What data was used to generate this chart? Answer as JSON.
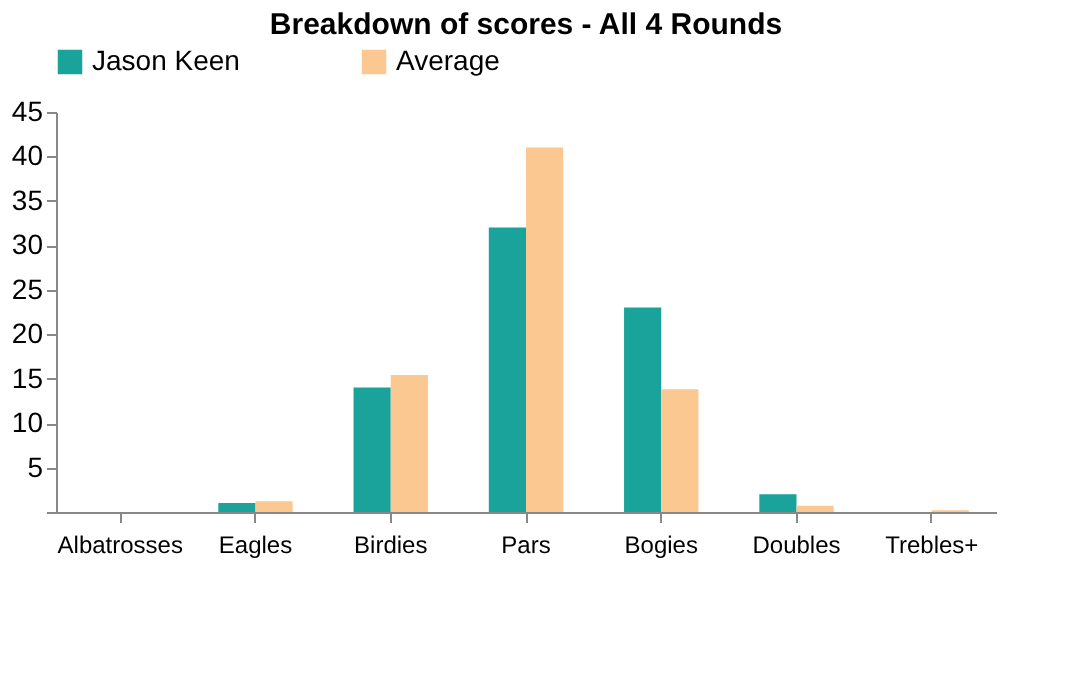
{
  "chart_data": {
    "type": "bar",
    "title": "Breakdown of scores - All 4 Rounds",
    "categories": [
      "Albatrosses",
      "Eagles",
      "Birdies",
      "Pars",
      "Bogies",
      "Doubles",
      "Trebles+"
    ],
    "series": [
      {
        "name": "Jason Keen",
        "color": "#1aa39b",
        "values": [
          0,
          1,
          14,
          32,
          23,
          2,
          0
        ]
      },
      {
        "name": "Average",
        "color": "#fcc891",
        "values": [
          0,
          1.2,
          15.4,
          41,
          13.8,
          0.7,
          0.2
        ]
      }
    ],
    "ylim": [
      0,
      45
    ],
    "yticks": [
      {
        "value": 0,
        "label": null
      },
      5,
      10,
      15,
      20,
      25,
      30,
      35,
      40,
      45
    ],
    "grid": false,
    "legend": "top"
  }
}
